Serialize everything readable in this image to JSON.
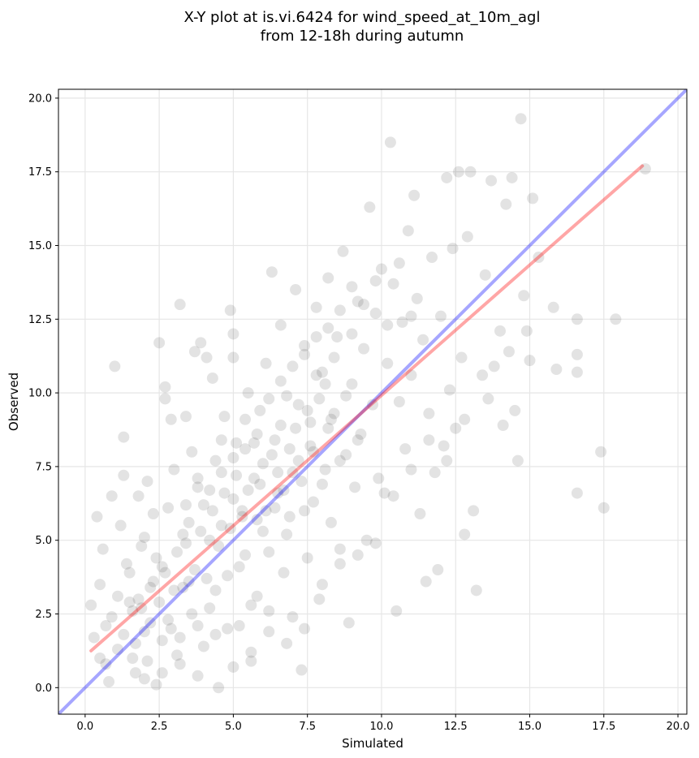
{
  "chart_data": {
    "type": "scatter",
    "title_line1": "X-Y plot at is.vi.6424 for wind_speed_at_10m_agl",
    "title_line2": "from 12-18h during autumn",
    "xlabel": "Simulated",
    "ylabel": "Observed",
    "xlim": [
      -0.9,
      20.3
    ],
    "ylim": [
      -0.9,
      20.3
    ],
    "xticks": [
      "0.0",
      "2.5",
      "5.0",
      "7.5",
      "10.0",
      "12.5",
      "15.0",
      "17.5",
      "20.0"
    ],
    "yticks": [
      "0.0",
      "2.5",
      "5.0",
      "7.5",
      "10.0",
      "12.5",
      "15.0",
      "17.5",
      "20.0"
    ],
    "grid": true,
    "colors": {
      "points": "#000000",
      "identity_line": "#0000ff",
      "fit_line": "#ff0000"
    },
    "identity_line": {
      "x": [
        -0.9,
        20.3
      ],
      "y": [
        -0.9,
        20.3
      ]
    },
    "fit_line": {
      "x": [
        0.2,
        18.8
      ],
      "y": [
        1.25,
        17.7
      ]
    },
    "points": [
      [
        0.2,
        2.8
      ],
      [
        0.3,
        1.7
      ],
      [
        0.4,
        5.8
      ],
      [
        0.5,
        3.5
      ],
      [
        0.6,
        4.7
      ],
      [
        0.7,
        2.1
      ],
      [
        0.8,
        0.2
      ],
      [
        0.9,
        6.5
      ],
      [
        1.0,
        10.9
      ],
      [
        1.1,
        1.3
      ],
      [
        1.2,
        5.5
      ],
      [
        1.3,
        8.5
      ],
      [
        1.3,
        7.2
      ],
      [
        1.5,
        3.9
      ],
      [
        1.6,
        2.6
      ],
      [
        1.7,
        0.5
      ],
      [
        1.8,
        6.5
      ],
      [
        1.9,
        4.8
      ],
      [
        2.0,
        1.9
      ],
      [
        2.1,
        7.0
      ],
      [
        2.2,
        3.4
      ],
      [
        2.3,
        5.9
      ],
      [
        2.4,
        0.1
      ],
      [
        2.5,
        11.7
      ],
      [
        2.6,
        4.1
      ],
      [
        2.7,
        10.2
      ],
      [
        2.7,
        9.8
      ],
      [
        2.8,
        2.3
      ],
      [
        2.9,
        9.1
      ],
      [
        3.0,
        7.4
      ],
      [
        3.1,
        1.1
      ],
      [
        3.2,
        13.0
      ],
      [
        3.3,
        5.2
      ],
      [
        3.4,
        9.2
      ],
      [
        3.5,
        3.6
      ],
      [
        3.6,
        8.0
      ],
      [
        3.7,
        11.4
      ],
      [
        3.8,
        0.4
      ],
      [
        3.9,
        11.7
      ],
      [
        4.0,
        6.2
      ],
      [
        4.1,
        11.2
      ],
      [
        4.2,
        2.7
      ],
      [
        4.3,
        10.5
      ],
      [
        4.4,
        7.7
      ],
      [
        4.5,
        0.0
      ],
      [
        4.6,
        5.5
      ],
      [
        4.7,
        9.2
      ],
      [
        4.8,
        3.8
      ],
      [
        4.9,
        12.8
      ],
      [
        5.0,
        12.0
      ],
      [
        5.0,
        11.2
      ],
      [
        5.1,
        8.3
      ],
      [
        5.2,
        2.1
      ],
      [
        5.3,
        6.0
      ],
      [
        5.4,
        4.5
      ],
      [
        5.5,
        10.0
      ],
      [
        5.6,
        0.9
      ],
      [
        5.7,
        7.1
      ],
      [
        5.8,
        3.1
      ],
      [
        5.9,
        9.4
      ],
      [
        6.0,
        5.3
      ],
      [
        6.1,
        11.0
      ],
      [
        6.2,
        1.9
      ],
      [
        6.3,
        14.1
      ],
      [
        6.4,
        8.4
      ],
      [
        6.5,
        6.6
      ],
      [
        6.6,
        12.3
      ],
      [
        6.7,
        3.9
      ],
      [
        6.8,
        9.9
      ],
      [
        6.9,
        5.8
      ],
      [
        7.0,
        2.4
      ],
      [
        7.1,
        13.5
      ],
      [
        7.2,
        7.7
      ],
      [
        7.3,
        0.6
      ],
      [
        7.4,
        11.6
      ],
      [
        7.5,
        4.4
      ],
      [
        7.6,
        9.0
      ],
      [
        7.7,
        6.3
      ],
      [
        7.8,
        12.9
      ],
      [
        7.9,
        3.0
      ],
      [
        8.0,
        10.7
      ],
      [
        8.1,
        7.4
      ],
      [
        8.2,
        13.9
      ],
      [
        8.3,
        5.6
      ],
      [
        8.4,
        9.3
      ],
      [
        8.5,
        11.9
      ],
      [
        8.6,
        4.2
      ],
      [
        8.7,
        14.8
      ],
      [
        8.8,
        7.9
      ],
      [
        8.9,
        2.2
      ],
      [
        9.0,
        10.3
      ],
      [
        9.1,
        6.8
      ],
      [
        9.2,
        13.1
      ],
      [
        9.3,
        8.6
      ],
      [
        9.4,
        11.5
      ],
      [
        9.5,
        5.0
      ],
      [
        9.6,
        16.3
      ],
      [
        9.7,
        9.6
      ],
      [
        9.8,
        12.7
      ],
      [
        9.9,
        7.1
      ],
      [
        10.0,
        14.2
      ],
      [
        10.1,
        6.6
      ],
      [
        10.2,
        11.0
      ],
      [
        10.3,
        18.5
      ],
      [
        10.4,
        13.7
      ],
      [
        10.5,
        2.6
      ],
      [
        10.6,
        9.7
      ],
      [
        10.7,
        12.4
      ],
      [
        10.8,
        8.1
      ],
      [
        10.9,
        15.5
      ],
      [
        11.0,
        10.6
      ],
      [
        11.1,
        16.7
      ],
      [
        11.2,
        13.2
      ],
      [
        11.3,
        5.9
      ],
      [
        11.4,
        11.8
      ],
      [
        11.5,
        3.6
      ],
      [
        11.6,
        9.3
      ],
      [
        11.7,
        14.6
      ],
      [
        11.8,
        7.3
      ],
      [
        11.9,
        4.0
      ],
      [
        12.0,
        12.6
      ],
      [
        12.1,
        8.2
      ],
      [
        12.2,
        17.3
      ],
      [
        12.3,
        10.1
      ],
      [
        12.4,
        14.9
      ],
      [
        12.5,
        8.8
      ],
      [
        12.6,
        17.5
      ],
      [
        12.7,
        11.2
      ],
      [
        12.8,
        5.2
      ],
      [
        12.9,
        15.3
      ],
      [
        13.0,
        17.5
      ],
      [
        13.1,
        6.0
      ],
      [
        13.2,
        3.3
      ],
      [
        13.4,
        10.6
      ],
      [
        13.5,
        14.0
      ],
      [
        13.7,
        17.2
      ],
      [
        13.8,
        10.9
      ],
      [
        14.0,
        12.1
      ],
      [
        14.1,
        8.9
      ],
      [
        14.2,
        16.4
      ],
      [
        14.3,
        11.4
      ],
      [
        14.4,
        17.3
      ],
      [
        14.5,
        9.4
      ],
      [
        14.6,
        7.7
      ],
      [
        14.7,
        19.3
      ],
      [
        14.8,
        13.3
      ],
      [
        14.9,
        12.1
      ],
      [
        15.0,
        11.1
      ],
      [
        15.1,
        16.6
      ],
      [
        15.3,
        14.6
      ],
      [
        15.8,
        12.9
      ],
      [
        15.9,
        10.8
      ],
      [
        16.6,
        6.6
      ],
      [
        16.6,
        11.3
      ],
      [
        16.6,
        10.7
      ],
      [
        16.6,
        12.5
      ],
      [
        17.4,
        8.0
      ],
      [
        17.5,
        6.1
      ],
      [
        17.9,
        12.5
      ],
      [
        18.9,
        17.6
      ],
      [
        1.4,
        4.2
      ],
      [
        1.6,
        1.0
      ],
      [
        1.8,
        3.0
      ],
      [
        2.0,
        5.1
      ],
      [
        2.2,
        2.2
      ],
      [
        2.4,
        4.4
      ],
      [
        2.6,
        1.6
      ],
      [
        2.8,
        6.1
      ],
      [
        3.0,
        3.3
      ],
      [
        3.2,
        0.8
      ],
      [
        3.4,
        4.9
      ],
      [
        3.6,
        2.5
      ],
      [
        3.8,
        6.8
      ],
      [
        4.0,
        1.4
      ],
      [
        4.2,
        5.0
      ],
      [
        4.4,
        3.3
      ],
      [
        4.6,
        7.3
      ],
      [
        4.8,
        2.0
      ],
      [
        5.0,
        6.4
      ],
      [
        5.2,
        4.1
      ],
      [
        5.4,
        8.1
      ],
      [
        5.6,
        2.8
      ],
      [
        5.8,
        5.7
      ],
      [
        6.0,
        7.6
      ],
      [
        6.2,
        4.6
      ],
      [
        6.4,
        6.1
      ],
      [
        6.6,
        8.9
      ],
      [
        6.8,
        5.2
      ],
      [
        7.0,
        7.3
      ],
      [
        7.2,
        9.6
      ],
      [
        7.4,
        6.0
      ],
      [
        7.6,
        8.2
      ],
      [
        7.8,
        10.6
      ],
      [
        8.0,
        6.9
      ],
      [
        8.2,
        8.8
      ],
      [
        8.4,
        11.2
      ],
      [
        8.6,
        7.7
      ],
      [
        8.8,
        9.9
      ],
      [
        9.0,
        12.0
      ],
      [
        9.2,
        8.4
      ],
      [
        0.5,
        1.0
      ],
      [
        0.7,
        0.8
      ],
      [
        0.9,
        2.4
      ],
      [
        1.1,
        3.1
      ],
      [
        1.3,
        1.8
      ],
      [
        1.5,
        2.9
      ],
      [
        1.7,
        1.5
      ],
      [
        1.9,
        2.7
      ],
      [
        2.1,
        0.9
      ],
      [
        2.3,
        3.6
      ],
      [
        2.5,
        2.9
      ],
      [
        2.7,
        3.9
      ],
      [
        2.9,
        2.0
      ],
      [
        3.1,
        4.6
      ],
      [
        3.3,
        3.4
      ],
      [
        3.5,
        5.6
      ],
      [
        3.7,
        4.0
      ],
      [
        3.9,
        5.3
      ],
      [
        4.1,
        3.7
      ],
      [
        4.3,
        6.0
      ],
      [
        4.5,
        4.8
      ],
      [
        4.7,
        6.6
      ],
      [
        4.9,
        5.4
      ],
      [
        5.1,
        7.2
      ],
      [
        5.3,
        5.8
      ],
      [
        5.5,
        6.7
      ],
      [
        5.7,
        8.3
      ],
      [
        5.9,
        6.9
      ],
      [
        6.1,
        6.0
      ],
      [
        6.3,
        7.9
      ],
      [
        6.5,
        7.3
      ],
      [
        6.7,
        6.7
      ],
      [
        6.9,
        8.1
      ],
      [
        7.1,
        8.8
      ],
      [
        7.3,
        7.0
      ],
      [
        7.5,
        9.4
      ],
      [
        7.7,
        8.0
      ],
      [
        7.9,
        9.8
      ],
      [
        8.1,
        10.3
      ],
      [
        8.3,
        9.1
      ],
      [
        3.4,
        6.2
      ],
      [
        3.8,
        7.1
      ],
      [
        4.2,
        6.7
      ],
      [
        4.6,
        8.4
      ],
      [
        5.0,
        7.8
      ],
      [
        5.4,
        9.1
      ],
      [
        5.8,
        8.6
      ],
      [
        6.2,
        9.8
      ],
      [
        6.6,
        10.4
      ],
      [
        7.0,
        10.9
      ],
      [
        7.4,
        11.3
      ],
      [
        7.8,
        11.9
      ],
      [
        8.2,
        12.2
      ],
      [
        8.6,
        12.8
      ],
      [
        9.0,
        13.6
      ],
      [
        9.4,
        13.0
      ],
      [
        9.8,
        13.8
      ],
      [
        10.2,
        12.3
      ],
      [
        10.6,
        14.4
      ],
      [
        11.0,
        12.6
      ],
      [
        2.0,
        0.3
      ],
      [
        2.6,
        0.5
      ],
      [
        3.2,
        1.7
      ],
      [
        3.8,
        2.1
      ],
      [
        4.4,
        1.8
      ],
      [
        5.0,
        0.7
      ],
      [
        5.6,
        1.2
      ],
      [
        6.2,
        2.6
      ],
      [
        6.8,
        1.5
      ],
      [
        7.4,
        2.0
      ],
      [
        8.0,
        3.5
      ],
      [
        8.6,
        4.7
      ],
      [
        9.2,
        4.5
      ],
      [
        9.8,
        4.9
      ],
      [
        10.4,
        6.5
      ],
      [
        11.0,
        7.4
      ],
      [
        11.6,
        8.4
      ],
      [
        12.2,
        7.7
      ],
      [
        12.8,
        9.1
      ],
      [
        13.6,
        9.8
      ]
    ]
  }
}
